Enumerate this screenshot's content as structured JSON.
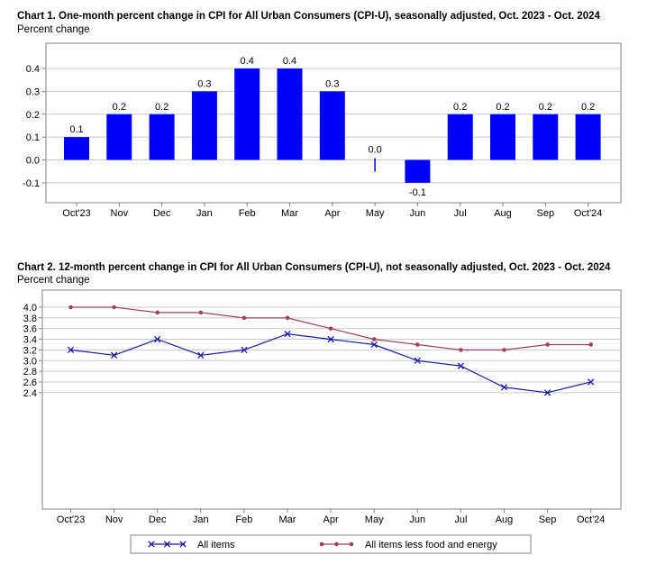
{
  "chart_data": [
    {
      "type": "bar",
      "title": "Chart 1. One-month percent change in CPI for All Urban Consumers (CPI-U), seasonally adjusted, Oct. 2023 - Oct. 2024",
      "ylabel": "Percent change",
      "xlabel": "",
      "categories": [
        "Oct'23",
        "Nov",
        "Dec",
        "Jan",
        "Feb",
        "Mar",
        "Apr",
        "May",
        "Jun",
        "Jul",
        "Aug",
        "Sep",
        "Oct'24"
      ],
      "values": [
        0.1,
        0.2,
        0.2,
        0.3,
        0.4,
        0.4,
        0.3,
        0.0,
        -0.1,
        0.2,
        0.2,
        0.2,
        0.2
      ],
      "data_labels": [
        "0.1",
        "0.2",
        "0.2",
        "0.3",
        "0.4",
        "0.4",
        "0.3",
        "0.0",
        "-0.1",
        "0.2",
        "0.2",
        "0.2",
        "0.2"
      ],
      "ylim": [
        -0.15,
        0.45
      ],
      "yticks": [
        -0.1,
        0.0,
        0.1,
        0.2,
        0.3,
        0.4
      ],
      "ytick_labels": [
        "-0.1",
        "0.0",
        "0.1",
        "0.2",
        "0.3",
        "0.4"
      ],
      "grid": true,
      "bar_color": "#0000ff"
    },
    {
      "type": "line",
      "title": "Chart 2. 12-month percent change in CPI for All Urban Consumers (CPI-U), not seasonally adjusted, Oct. 2023 - Oct. 2024",
      "ylabel": "Percent change",
      "xlabel": "",
      "categories": [
        "Oct'23",
        "Nov",
        "Dec",
        "Jan",
        "Feb",
        "Mar",
        "Apr",
        "May",
        "Jun",
        "Jul",
        "Aug",
        "Sep",
        "Oct'24"
      ],
      "series": [
        {
          "name": "All items",
          "values": [
            3.2,
            3.1,
            3.4,
            3.1,
            3.2,
            3.5,
            3.4,
            3.3,
            3.0,
            2.9,
            2.5,
            2.4,
            2.6
          ],
          "color": "#1a1aa6",
          "marker": "x"
        },
        {
          "name": "All items less food and energy",
          "values": [
            4.0,
            4.0,
            3.9,
            3.9,
            3.8,
            3.8,
            3.6,
            3.4,
            3.3,
            3.2,
            3.2,
            3.3,
            3.3
          ],
          "color": "#a0405a",
          "marker": "dot"
        }
      ],
      "ylim": [
        2.2,
        4.1
      ],
      "yticks": [
        2.4,
        2.6,
        2.8,
        3.0,
        3.2,
        3.4,
        3.6,
        3.8,
        4.0
      ],
      "ytick_labels": [
        "2.4",
        "2.6",
        "2.8",
        "3.0",
        "3.2",
        "3.4",
        "3.6",
        "3.8",
        "4.0"
      ],
      "grid": true,
      "legend": "bottom"
    }
  ]
}
